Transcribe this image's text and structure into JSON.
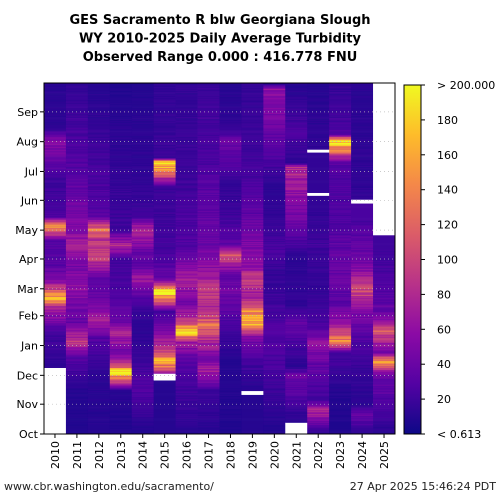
{
  "chart_data": {
    "type": "heatmap",
    "title_lines": [
      "GES Sacramento R blw Georgiana Slough",
      "WY 2010-2025 Daily Average Turbidity",
      "Observed Range 0.000 : 416.778 FNU"
    ],
    "x_categories": [
      "2010",
      "2011",
      "2012",
      "2013",
      "2014",
      "2015",
      "2016",
      "2017",
      "2018",
      "2019",
      "2020",
      "2021",
      "2022",
      "2023",
      "2024",
      "2025"
    ],
    "y_labels": [
      "Oct",
      "Nov",
      "Dec",
      "Jan",
      "Feb",
      "Mar",
      "Apr",
      "May",
      "Jun",
      "Jul",
      "Aug",
      "Sep"
    ],
    "value_range": [
      0,
      200
    ],
    "colorbar_ticks": [
      20,
      40,
      60,
      80,
      100,
      120,
      140,
      160,
      180
    ],
    "colorbar_min_label": "< 0.613",
    "colorbar_max_label": "> 200.000",
    "colormap": [
      "#0d0887",
      "#5302a3",
      "#8b0aa5",
      "#b83289",
      "#db5c68",
      "#f48849",
      "#febc2a",
      "#f0f921"
    ],
    "missing_color": "#ffffff",
    "grid": "dotted, on",
    "series": [
      {
        "year": "2010",
        "levels": [
          {
            "date": "10-01",
            "v": null
          },
          {
            "date": "12-08",
            "v": 14
          },
          {
            "date": "12-25",
            "v": 18
          },
          {
            "date": "01-15",
            "v": 22
          },
          {
            "date": "02-10",
            "v": 75
          },
          {
            "date": "02-18",
            "v": 165
          },
          {
            "date": "03-08",
            "v": 55
          },
          {
            "date": "03-25",
            "v": 30
          },
          {
            "date": "04-20",
            "v": 30
          },
          {
            "date": "05-05",
            "v": 150
          },
          {
            "date": "05-15",
            "v": 25
          },
          {
            "date": "06-20",
            "v": 18
          },
          {
            "date": "08-01",
            "v": 55
          },
          {
            "date": "08-15",
            "v": 12
          },
          {
            "date": "09-30",
            "v": 12
          }
        ]
      },
      {
        "year": "2011",
        "levels": [
          {
            "date": "10-01",
            "v": 8
          },
          {
            "date": "11-15",
            "v": 10
          },
          {
            "date": "12-20",
            "v": 30
          },
          {
            "date": "01-05",
            "v": 90
          },
          {
            "date": "01-25",
            "v": 35
          },
          {
            "date": "03-01",
            "v": 60
          },
          {
            "date": "03-25",
            "v": 45
          },
          {
            "date": "04-15",
            "v": 70
          },
          {
            "date": "05-05",
            "v": 50
          },
          {
            "date": "06-01",
            "v": 40
          },
          {
            "date": "07-01",
            "v": 30
          },
          {
            "date": "08-15",
            "v": 22
          },
          {
            "date": "09-30",
            "v": 15
          }
        ]
      },
      {
        "year": "2012",
        "levels": [
          {
            "date": "10-01",
            "v": 10
          },
          {
            "date": "12-01",
            "v": 12
          },
          {
            "date": "01-10",
            "v": 30
          },
          {
            "date": "01-25",
            "v": 75
          },
          {
            "date": "02-20",
            "v": 40
          },
          {
            "date": "03-10",
            "v": 30
          },
          {
            "date": "04-05",
            "v": 100
          },
          {
            "date": "04-20",
            "v": 85
          },
          {
            "date": "05-01",
            "v": 130
          },
          {
            "date": "05-15",
            "v": 30
          },
          {
            "date": "06-20",
            "v": 25
          },
          {
            "date": "08-15",
            "v": 16
          },
          {
            "date": "09-30",
            "v": 10
          }
        ]
      },
      {
        "year": "2013",
        "levels": [
          {
            "date": "10-01",
            "v": 8
          },
          {
            "date": "11-15",
            "v": 12
          },
          {
            "date": "12-05",
            "v": 190
          },
          {
            "date": "12-12",
            "v": 90
          },
          {
            "date": "12-25",
            "v": 40
          },
          {
            "date": "01-15",
            "v": 80
          },
          {
            "date": "01-25",
            "v": 40
          },
          {
            "date": "02-20",
            "v": 25
          },
          {
            "date": "04-01",
            "v": 22
          },
          {
            "date": "04-15",
            "v": 80
          },
          {
            "date": "05-01",
            "v": 20
          },
          {
            "date": "06-01",
            "v": 18
          },
          {
            "date": "08-15",
            "v": 12
          },
          {
            "date": "09-30",
            "v": 8
          }
        ]
      },
      {
        "year": "2014",
        "levels": [
          {
            "date": "10-01",
            "v": 8
          },
          {
            "date": "11-20",
            "v": 30
          },
          {
            "date": "12-10",
            "v": 20
          },
          {
            "date": "01-20",
            "v": 12
          },
          {
            "date": "02-10",
            "v": 20
          },
          {
            "date": "02-28",
            "v": 40
          },
          {
            "date": "03-10",
            "v": 70
          },
          {
            "date": "03-25",
            "v": 30
          },
          {
            "date": "04-10",
            "v": 40
          },
          {
            "date": "05-01",
            "v": 80
          },
          {
            "date": "05-15",
            "v": 20
          },
          {
            "date": "06-15",
            "v": 15
          },
          {
            "date": "09-30",
            "v": 10
          }
        ]
      },
      {
        "year": "2015",
        "levels": [
          {
            "date": "10-01",
            "v": 10
          },
          {
            "date": "11-25",
            "v": null
          },
          {
            "date": "12-02",
            "v": 45
          },
          {
            "date": "12-14",
            "v": 170
          },
          {
            "date": "12-25",
            "v": 100
          },
          {
            "date": "01-10",
            "v": 60
          },
          {
            "date": "02-05",
            "v": 20
          },
          {
            "date": "02-25",
            "v": 195
          },
          {
            "date": "03-10",
            "v": 40
          },
          {
            "date": "04-01",
            "v": 25
          },
          {
            "date": "05-01",
            "v": 20
          },
          {
            "date": "06-15",
            "v": 18
          },
          {
            "date": "07-10",
            "v": 200
          },
          {
            "date": "07-15",
            "v": 18
          },
          {
            "date": "09-30",
            "v": 15
          }
        ]
      },
      {
        "year": "2016",
        "levels": [
          {
            "date": "10-01",
            "v": 12
          },
          {
            "date": "11-15",
            "v": 20
          },
          {
            "date": "12-15",
            "v": 30
          },
          {
            "date": "01-05",
            "v": 70
          },
          {
            "date": "01-15",
            "v": 190
          },
          {
            "date": "01-28",
            "v": 80
          },
          {
            "date": "02-15",
            "v": 45
          },
          {
            "date": "03-10",
            "v": 75
          },
          {
            "date": "03-25",
            "v": 50
          },
          {
            "date": "04-10",
            "v": 30
          },
          {
            "date": "05-10",
            "v": 25
          },
          {
            "date": "06-15",
            "v": 20
          },
          {
            "date": "09-30",
            "v": 15
          }
        ]
      },
      {
        "year": "2017",
        "levels": [
          {
            "date": "10-01",
            "v": 10
          },
          {
            "date": "11-15",
            "v": 20
          },
          {
            "date": "12-05",
            "v": 70
          },
          {
            "date": "12-20",
            "v": 45
          },
          {
            "date": "01-08",
            "v": 85
          },
          {
            "date": "01-20",
            "v": 130
          },
          {
            "date": "02-05",
            "v": 80
          },
          {
            "date": "03-01",
            "v": 90
          },
          {
            "date": "03-20",
            "v": 60
          },
          {
            "date": "04-15",
            "v": 40
          },
          {
            "date": "05-15",
            "v": 35
          },
          {
            "date": "06-15",
            "v": 30
          },
          {
            "date": "07-15",
            "v": 25
          },
          {
            "date": "08-15",
            "v": 22
          },
          {
            "date": "09-30",
            "v": 18
          }
        ]
      },
      {
        "year": "2018",
        "levels": [
          {
            "date": "10-01",
            "v": 8
          },
          {
            "date": "12-15",
            "v": 10
          },
          {
            "date": "01-15",
            "v": 20
          },
          {
            "date": "03-01",
            "v": 45
          },
          {
            "date": "03-15",
            "v": 30
          },
          {
            "date": "04-05",
            "v": 110
          },
          {
            "date": "04-15",
            "v": 35
          },
          {
            "date": "05-15",
            "v": 20
          },
          {
            "date": "06-15",
            "v": 15
          },
          {
            "date": "08-01",
            "v": 40
          },
          {
            "date": "08-15",
            "v": 15
          },
          {
            "date": "09-30",
            "v": 10
          }
        ]
      },
      {
        "year": "2019",
        "levels": [
          {
            "date": "10-01",
            "v": 10
          },
          {
            "date": "11-10",
            "v": null
          },
          {
            "date": "11-14",
            "v": 10
          },
          {
            "date": "12-15",
            "v": 22
          },
          {
            "date": "01-10",
            "v": 50
          },
          {
            "date": "01-25",
            "v": 170
          },
          {
            "date": "02-05",
            "v": 140
          },
          {
            "date": "02-20",
            "v": 70
          },
          {
            "date": "03-10",
            "v": 95
          },
          {
            "date": "03-25",
            "v": 60
          },
          {
            "date": "04-15",
            "v": 50
          },
          {
            "date": "05-15",
            "v": 35
          },
          {
            "date": "06-15",
            "v": 25
          },
          {
            "date": "07-15",
            "v": 20
          },
          {
            "date": "09-30",
            "v": 15
          }
        ]
      },
      {
        "year": "2020",
        "levels": [
          {
            "date": "10-01",
            "v": 8
          },
          {
            "date": "12-01",
            "v": 22
          },
          {
            "date": "01-10",
            "v": 30
          },
          {
            "date": "01-25",
            "v": 25
          },
          {
            "date": "02-15",
            "v": 20
          },
          {
            "date": "03-15",
            "v": 15
          },
          {
            "date": "04-10",
            "v": 25
          },
          {
            "date": "05-15",
            "v": 15
          },
          {
            "date": "06-15",
            "v": 12
          },
          {
            "date": "09-25",
            "v": 60
          },
          {
            "date": "09-30",
            "v": 10
          }
        ]
      },
      {
        "year": "2021",
        "levels": [
          {
            "date": "10-01",
            "v": null
          },
          {
            "date": "10-12",
            "v": 10
          },
          {
            "date": "12-01",
            "v": 40
          },
          {
            "date": "12-10",
            "v": 12
          },
          {
            "date": "01-25",
            "v": 35
          },
          {
            "date": "02-10",
            "v": 15
          },
          {
            "date": "04-01",
            "v": 12
          },
          {
            "date": "07-05",
            "v": 80
          },
          {
            "date": "07-10",
            "v": 12
          },
          {
            "date": "08-10",
            "v": 25
          },
          {
            "date": "09-30",
            "v": 10
          }
        ]
      },
      {
        "year": "2022",
        "levels": [
          {
            "date": "10-01",
            "v": 10
          },
          {
            "date": "10-25",
            "v": 80
          },
          {
            "date": "11-05",
            "v": 20
          },
          {
            "date": "12-10",
            "v": 35
          },
          {
            "date": "01-05",
            "v": 60
          },
          {
            "date": "01-20",
            "v": 25
          },
          {
            "date": "03-01",
            "v": 15
          },
          {
            "date": "04-15",
            "v": 20
          },
          {
            "date": "05-20",
            "v": 15
          },
          {
            "date": "06-05",
            "v": null
          },
          {
            "date": "06-08",
            "v": 15
          },
          {
            "date": "07-20",
            "v": null
          },
          {
            "date": "07-23",
            "v": 15
          },
          {
            "date": "09-30",
            "v": 10
          }
        ]
      },
      {
        "year": "2023",
        "levels": [
          {
            "date": "10-01",
            "v": 8
          },
          {
            "date": "11-15",
            "v": 10
          },
          {
            "date": "12-25",
            "v": 25
          },
          {
            "date": "01-05",
            "v": 150
          },
          {
            "date": "01-15",
            "v": 90
          },
          {
            "date": "01-25",
            "v": 60
          },
          {
            "date": "02-15",
            "v": 30
          },
          {
            "date": "03-10",
            "v": 40
          },
          {
            "date": "04-10",
            "v": 35
          },
          {
            "date": "05-10",
            "v": 25
          },
          {
            "date": "07-10",
            "v": 30
          },
          {
            "date": "08-01",
            "v": 200
          },
          {
            "date": "08-08",
            "v": 25
          },
          {
            "date": "09-30",
            "v": 15
          }
        ]
      },
      {
        "year": "2024",
        "levels": [
          {
            "date": "10-01",
            "v": 10
          },
          {
            "date": "10-20",
            "v": 40
          },
          {
            "date": "11-01",
            "v": 12
          },
          {
            "date": "12-10",
            "v": 18
          },
          {
            "date": "01-10",
            "v": 30
          },
          {
            "date": "01-25",
            "v": 40
          },
          {
            "date": "02-10",
            "v": 60
          },
          {
            "date": "02-25",
            "v": 100
          },
          {
            "date": "03-10",
            "v": 80
          },
          {
            "date": "03-25",
            "v": 45
          },
          {
            "date": "04-15",
            "v": 35
          },
          {
            "date": "05-10",
            "v": 25
          },
          {
            "date": "05-28",
            "v": null
          },
          {
            "date": "06-01",
            "v": 15
          },
          {
            "date": "09-30",
            "v": 12
          }
        ]
      },
      {
        "year": "2025",
        "levels": [
          {
            "date": "10-01",
            "v": 12
          },
          {
            "date": "12-01",
            "v": 40
          },
          {
            "date": "12-15",
            "v": 150
          },
          {
            "date": "12-25",
            "v": 40
          },
          {
            "date": "01-05",
            "v": 70
          },
          {
            "date": "01-15",
            "v": 110
          },
          {
            "date": "02-01",
            "v": 40
          },
          {
            "date": "02-20",
            "v": 30
          },
          {
            "date": "03-10",
            "v": 25
          },
          {
            "date": "04-10",
            "v": 20
          },
          {
            "date": "04-25",
            "v": null
          }
        ]
      }
    ]
  },
  "footer": {
    "source": "www.cbr.washington.edu/sacramento/",
    "timestamp": "27 Apr 2025 15:46:24 PDT"
  }
}
